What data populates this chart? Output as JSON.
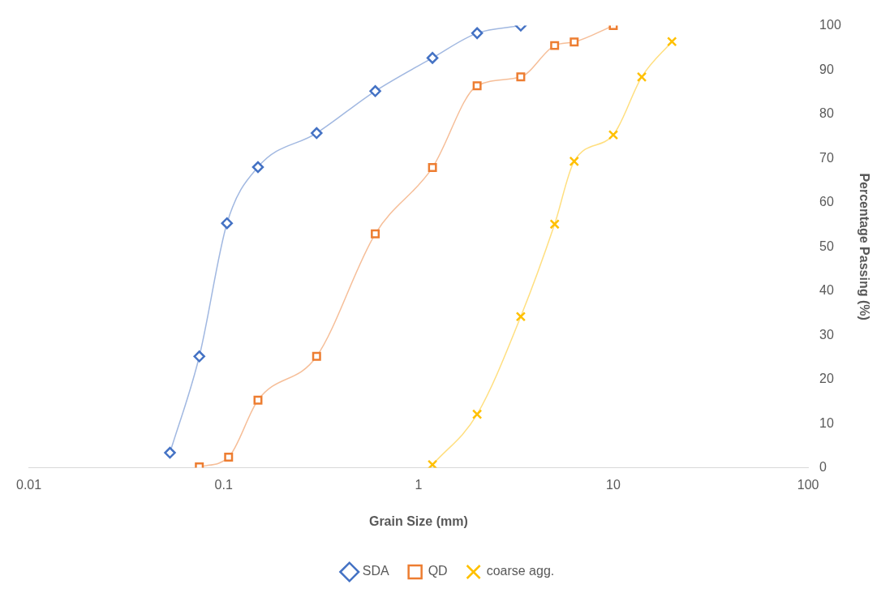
{
  "chart_data": {
    "type": "line",
    "xlabel": "Grain Size (mm)",
    "ylabel": "Percentage Passing (%)",
    "log": "x",
    "xlim": [
      0.01,
      100
    ],
    "xticks": [
      0.01,
      0.1,
      1,
      10,
      100
    ],
    "ylim": [
      0,
      100
    ],
    "yticks": [
      0,
      10,
      20,
      30,
      40,
      50,
      60,
      70,
      80,
      90,
      100
    ],
    "grid": false,
    "legend": "bottom",
    "series": [
      {
        "name": "SDA",
        "color": "#4472c4",
        "marker": "diamond",
        "x": [
          0.053,
          0.075,
          0.104,
          0.15,
          0.3,
          0.6,
          1.18,
          2.0,
          3.35
        ],
        "values": [
          3.4,
          25.2,
          55.3,
          68.0,
          75.7,
          85.2,
          92.7,
          98.3,
          100
        ]
      },
      {
        "name": "QD",
        "color": "#ed7d31",
        "marker": "square",
        "x": [
          0.075,
          0.106,
          0.15,
          0.3,
          0.6,
          1.18,
          2.0,
          3.35,
          5.0,
          6.3,
          10
        ],
        "values": [
          0.2,
          2.4,
          15.3,
          25.2,
          52.9,
          67.9,
          86.4,
          88.4,
          95.5,
          96.3,
          100
        ]
      },
      {
        "name": "coarse agg.",
        "color": "#ffc000",
        "marker": "cross",
        "x": [
          1.18,
          2.0,
          3.35,
          5.0,
          6.3,
          10,
          14,
          20
        ],
        "values": [
          0.7,
          12.1,
          34.2,
          55.1,
          69.3,
          75.3,
          88.4,
          96.4
        ]
      }
    ]
  }
}
